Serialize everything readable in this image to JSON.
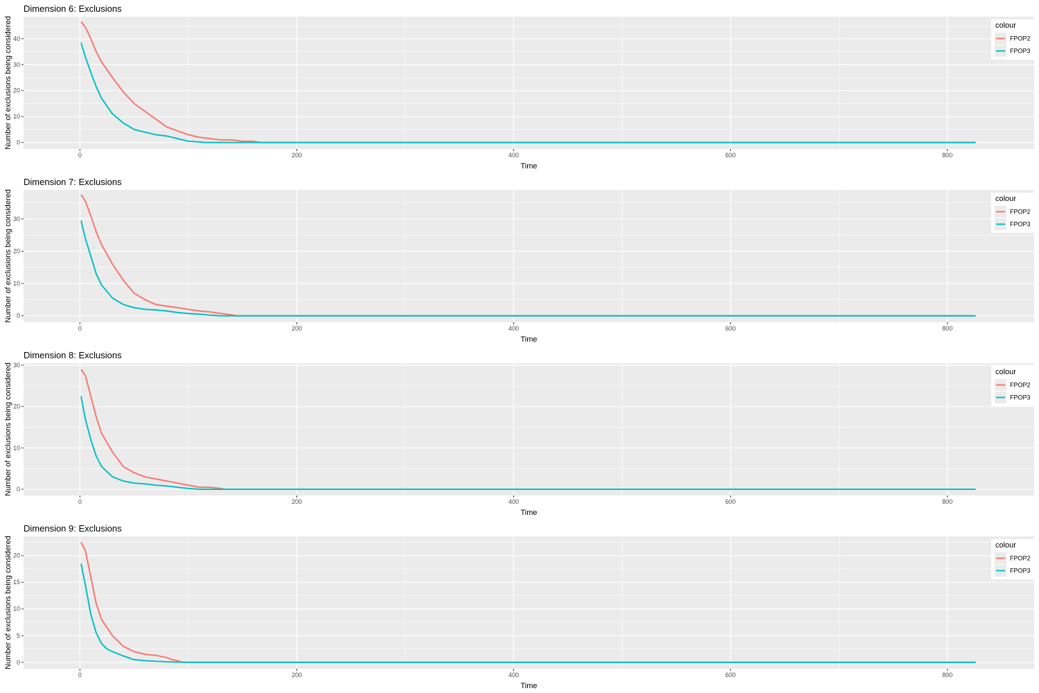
{
  "colors": {
    "panel_background": "#ebebeb",
    "grid_line": "#ffffff",
    "tick_text": "#4d4d4d",
    "FPOP2": "#f8766d",
    "FPOP3": "#00bfc4"
  },
  "chart_data": [
    {
      "type": "line",
      "title": "Dimension 6: Exclusions",
      "xlabel": "Time",
      "ylabel": "Number of exclusions being considered",
      "xlim": [
        -52,
        880
      ],
      "ylim": [
        -2.5,
        48.5
      ],
      "x_ticks": [
        0,
        200,
        400,
        600,
        800
      ],
      "y_ticks": [
        0,
        10,
        20,
        30,
        40
      ],
      "grid": true,
      "legend_title": "colour",
      "legend_position": "right",
      "series": [
        {
          "name": "FPOP2",
          "x": [
            1,
            5,
            10,
            15,
            20,
            30,
            40,
            50,
            60,
            70,
            80,
            90,
            100,
            110,
            120,
            130,
            140,
            150,
            160,
            166,
            200,
            400,
            600,
            800,
            826
          ],
          "y": [
            46.5,
            44.5,
            40,
            35,
            31,
            25,
            19.5,
            15,
            12,
            9,
            6,
            4.5,
            3,
            2,
            1.5,
            1,
            1,
            0.5,
            0.5,
            0,
            0,
            0,
            0,
            0,
            0
          ]
        },
        {
          "name": "FPOP3",
          "x": [
            1,
            5,
            10,
            15,
            20,
            30,
            40,
            50,
            60,
            70,
            80,
            90,
            100,
            110,
            115,
            200,
            400,
            600,
            800,
            826
          ],
          "y": [
            38.5,
            33,
            27,
            21.5,
            17,
            11,
            7.5,
            5,
            4,
            3,
            2.5,
            1.5,
            0.5,
            0.2,
            0,
            0,
            0,
            0,
            0,
            0
          ]
        }
      ]
    },
    {
      "type": "line",
      "title": "Dimension 7: Exclusions",
      "xlabel": "Time",
      "ylabel": "Number of exclusions being considered",
      "xlim": [
        -52,
        880
      ],
      "ylim": [
        -2,
        39
      ],
      "x_ticks": [
        0,
        200,
        400,
        600,
        800
      ],
      "y_ticks": [
        0,
        10,
        20,
        30
      ],
      "grid": true,
      "legend_title": "colour",
      "legend_position": "right",
      "series": [
        {
          "name": "FPOP2",
          "x": [
            1,
            5,
            10,
            15,
            20,
            30,
            40,
            50,
            60,
            70,
            80,
            90,
            100,
            110,
            120,
            130,
            140,
            145,
            200,
            400,
            600,
            800,
            826
          ],
          "y": [
            37.5,
            35.5,
            31,
            26,
            22,
            16,
            11,
            7,
            5,
            3.5,
            3,
            2.5,
            2,
            1.5,
            1.2,
            0.7,
            0.3,
            0,
            0,
            0,
            0,
            0,
            0
          ]
        },
        {
          "name": "FPOP3",
          "x": [
            1,
            5,
            10,
            15,
            20,
            30,
            40,
            50,
            60,
            70,
            80,
            90,
            100,
            110,
            120,
            130,
            200,
            400,
            600,
            800,
            826
          ],
          "y": [
            29.5,
            24,
            18.5,
            13,
            9.5,
            5.5,
            3.5,
            2.5,
            2,
            1.8,
            1.5,
            1,
            0.7,
            0.5,
            0.2,
            0,
            0,
            0,
            0,
            0,
            0
          ]
        }
      ]
    },
    {
      "type": "line",
      "title": "Dimension 8: Exclusions",
      "xlabel": "Time",
      "ylabel": "Number of exclusions being considered",
      "xlim": [
        -52,
        880
      ],
      "ylim": [
        -1.5,
        30.5
      ],
      "x_ticks": [
        0,
        200,
        400,
        600,
        800
      ],
      "y_ticks": [
        0,
        10,
        20,
        30
      ],
      "grid": true,
      "legend_title": "colour",
      "legend_position": "right",
      "series": [
        {
          "name": "FPOP2",
          "x": [
            1,
            5,
            10,
            15,
            20,
            30,
            40,
            50,
            60,
            70,
            80,
            90,
            100,
            110,
            120,
            130,
            133,
            200,
            400,
            600,
            800,
            826
          ],
          "y": [
            29,
            27.5,
            22.5,
            17.5,
            13.5,
            9,
            5.5,
            4,
            3,
            2.5,
            2,
            1.5,
            1,
            0.5,
            0.5,
            0.2,
            0,
            0,
            0,
            0,
            0,
            0
          ]
        },
        {
          "name": "FPOP3",
          "x": [
            1,
            5,
            10,
            15,
            20,
            30,
            40,
            50,
            60,
            70,
            80,
            90,
            100,
            110,
            200,
            400,
            600,
            800,
            826
          ],
          "y": [
            22.5,
            17,
            12,
            8,
            5.5,
            3,
            2,
            1.5,
            1.3,
            1,
            0.8,
            0.5,
            0.2,
            0,
            0,
            0,
            0,
            0,
            0
          ]
        }
      ]
    },
    {
      "type": "line",
      "title": "Dimension 9: Exclusions",
      "xlabel": "Time",
      "ylabel": "Number of exclusions being considered",
      "xlim": [
        -52,
        880
      ],
      "ylim": [
        -1.2,
        23.6
      ],
      "x_ticks": [
        0,
        200,
        400,
        600,
        800
      ],
      "y_ticks": [
        0,
        5,
        10,
        15,
        20
      ],
      "grid": true,
      "legend_title": "colour",
      "legend_position": "right",
      "series": [
        {
          "name": "FPOP2",
          "x": [
            1,
            5,
            10,
            15,
            20,
            30,
            40,
            50,
            60,
            70,
            80,
            85,
            90,
            95,
            200,
            400,
            600,
            800,
            826
          ],
          "y": [
            22.5,
            21,
            16,
            11,
            8,
            5,
            3,
            2,
            1.5,
            1.3,
            0.9,
            0.5,
            0.3,
            0,
            0,
            0,
            0,
            0,
            0
          ]
        },
        {
          "name": "FPOP3",
          "x": [
            1,
            5,
            10,
            15,
            20,
            25,
            30,
            40,
            50,
            60,
            70,
            80,
            90,
            100,
            200,
            400,
            600,
            800,
            826
          ],
          "y": [
            18.5,
            14.5,
            9,
            5.5,
            3.5,
            2.5,
            2,
            1.2,
            0.5,
            0.3,
            0.2,
            0.1,
            0.05,
            0,
            0,
            0,
            0,
            0,
            0
          ]
        }
      ]
    }
  ]
}
